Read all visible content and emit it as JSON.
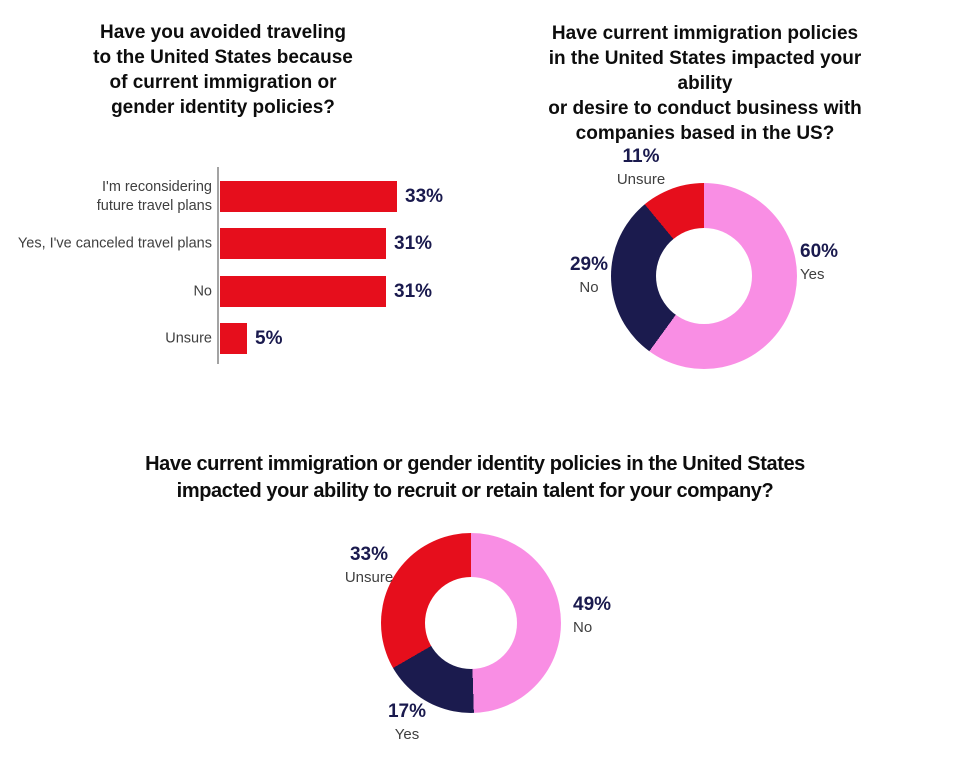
{
  "page": {
    "background": "#ffffff"
  },
  "colors": {
    "red": "#e60e1c",
    "pink": "#f98ee4",
    "navy": "#1b1b4e",
    "value_text": "#1a1a4e",
    "label_text": "#3f3f3f",
    "title_text": "#0d0d0d",
    "axis_line": "#a3a3a3"
  },
  "chart_data": [
    {
      "type": "bar",
      "orientation": "horizontal",
      "title": "Have you avoided traveling\nto the United States because\nof current immigration or\ngender identity policies?",
      "categories": [
        "I'm reconsidering\nfuture travel plans",
        "Yes, I've canceled travel plans",
        "No",
        "Unsure"
      ],
      "values": [
        33,
        31,
        31,
        5
      ],
      "value_labels": [
        "33%",
        "31%",
        "31%",
        "5%"
      ],
      "bar_color": "#e60e1c",
      "xlim": [
        0,
        35
      ],
      "grid": false,
      "legend": false
    },
    {
      "type": "donut",
      "title": "Have current immigration policies\nin the United States impacted your ability\nor desire to conduct business with\ncompanies based in the US?",
      "start_angle_deg": 0,
      "direction": "clockwise",
      "segments": [
        {
          "label": "Yes",
          "value": 60,
          "value_label": "60%",
          "color": "#f98ee4"
        },
        {
          "label": "No",
          "value": 29,
          "value_label": "29%",
          "color": "#1b1b4e"
        },
        {
          "label": "Unsure",
          "value": 11,
          "value_label": "11%",
          "color": "#e60e1c"
        }
      ]
    },
    {
      "type": "donut",
      "title": "Have current immigration or gender identity policies in the United States\nimpacted your ability to recruit or retain talent for your company?",
      "start_angle_deg": 0,
      "direction": "clockwise",
      "segments": [
        {
          "label": "No",
          "value": 49,
          "value_label": "49%",
          "color": "#f98ee4"
        },
        {
          "label": "Yes",
          "value": 17,
          "value_label": "17%",
          "color": "#1b1b4e"
        },
        {
          "label": "Unsure",
          "value": 33,
          "value_label": "33%",
          "color": "#e60e1c"
        }
      ]
    }
  ]
}
